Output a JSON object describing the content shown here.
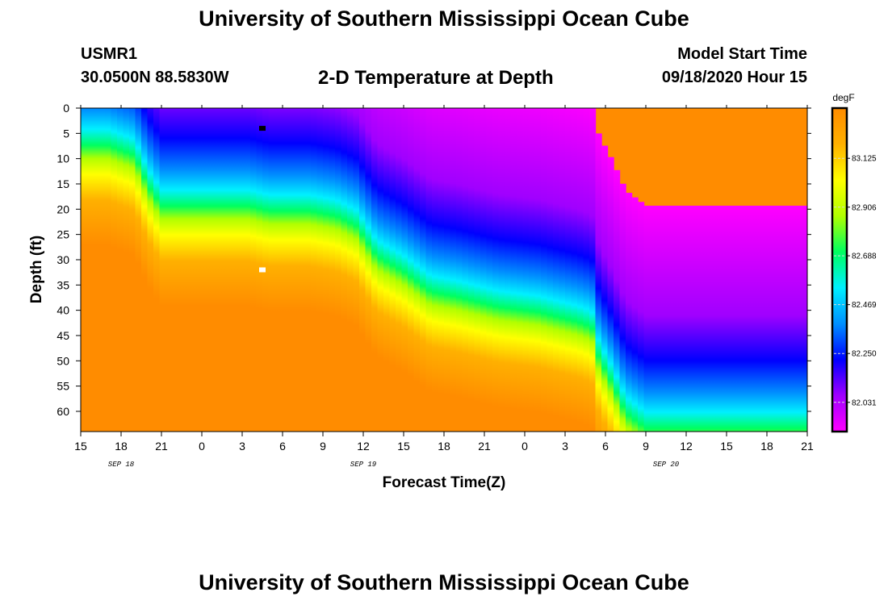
{
  "header": {
    "title_top": "University of Southern Mississippi Ocean Cube",
    "station": "USMR1",
    "coords": "30.0500N 88.5830W",
    "plot_title": "2-D Temperature at Depth",
    "model_start_label": "Model Start Time",
    "model_start_value": "09/18/2020 Hour 15"
  },
  "footer": {
    "title_bottom": "University of Southern Mississippi Ocean Cube"
  },
  "chart_data": {
    "type": "heatmap",
    "title": "2-D Temperature at Depth",
    "xlabel": "Forecast Time(Z)",
    "ylabel": "Depth (ft)",
    "x_tick_labels": [
      "15",
      "18",
      "21",
      "0",
      "3",
      "6",
      "9",
      "12",
      "15",
      "18",
      "21",
      "0",
      "3",
      "6",
      "9",
      "12",
      "15",
      "18",
      "21"
    ],
    "x_range_hours": [
      0,
      54
    ],
    "date_labels": [
      {
        "text": "SEP 18",
        "at_hour": 3
      },
      {
        "text": "SEP 19",
        "at_hour": 21
      },
      {
        "text": "SEP 20",
        "at_hour": 43.5
      }
    ],
    "y_tick_labels": [
      0,
      5,
      10,
      15,
      20,
      25,
      30,
      35,
      40,
      45,
      50,
      55,
      60
    ],
    "y_range": [
      0,
      64
    ],
    "y_inverted": true,
    "colorbar": {
      "unit": "degF",
      "tick_labels": [
        "83.125",
        "82.906",
        "82.688",
        "82.469",
        "82.250",
        "82.031"
      ],
      "tick_values": [
        83.125,
        82.906,
        82.688,
        82.469,
        82.25,
        82.031
      ],
      "range": [
        81.9,
        83.35
      ],
      "colors": [
        "#ff00ff",
        "#a000ff",
        "#0000ff",
        "#0090ff",
        "#00f0ff",
        "#00ff60",
        "#b0ff00",
        "#ffff00",
        "#ffb000",
        "#ff8c00"
      ]
    },
    "thermocline_depth_ft": [
      {
        "hour": 0,
        "depth": 8
      },
      {
        "hour": 2,
        "depth": 8
      },
      {
        "hour": 4,
        "depth": 10
      },
      {
        "hour": 5,
        "depth": 16
      },
      {
        "hour": 6,
        "depth": 20
      },
      {
        "hour": 8,
        "depth": 20
      },
      {
        "hour": 11,
        "depth": 20
      },
      {
        "hour": 12.5,
        "depth": 20
      },
      {
        "hour": 14,
        "depth": 21
      },
      {
        "hour": 17,
        "depth": 21
      },
      {
        "hour": 19,
        "depth": 22
      },
      {
        "hour": 20.5,
        "depth": 24
      },
      {
        "hour": 22,
        "depth": 30
      },
      {
        "hour": 24,
        "depth": 33
      },
      {
        "hour": 26,
        "depth": 37
      },
      {
        "hour": 28,
        "depth": 38
      },
      {
        "hour": 31,
        "depth": 40
      },
      {
        "hour": 34,
        "depth": 41
      },
      {
        "hour": 37,
        "depth": 43
      },
      {
        "hour": 38,
        "depth": 44
      },
      {
        "hour": 38.5,
        "depth": 50
      },
      {
        "hour": 39.5,
        "depth": 55
      },
      {
        "hour": 40.5,
        "depth": 61
      },
      {
        "hour": 42,
        "depth": 64
      },
      {
        "hour": 54,
        "depth": 64
      }
    ],
    "markers": [
      {
        "name": "min-temp-marker",
        "hour": 13.5,
        "depth": 4,
        "color": "#000000"
      },
      {
        "name": "max-temp-marker",
        "hour": 13.5,
        "depth": 32,
        "color": "#ffffff"
      }
    ]
  }
}
